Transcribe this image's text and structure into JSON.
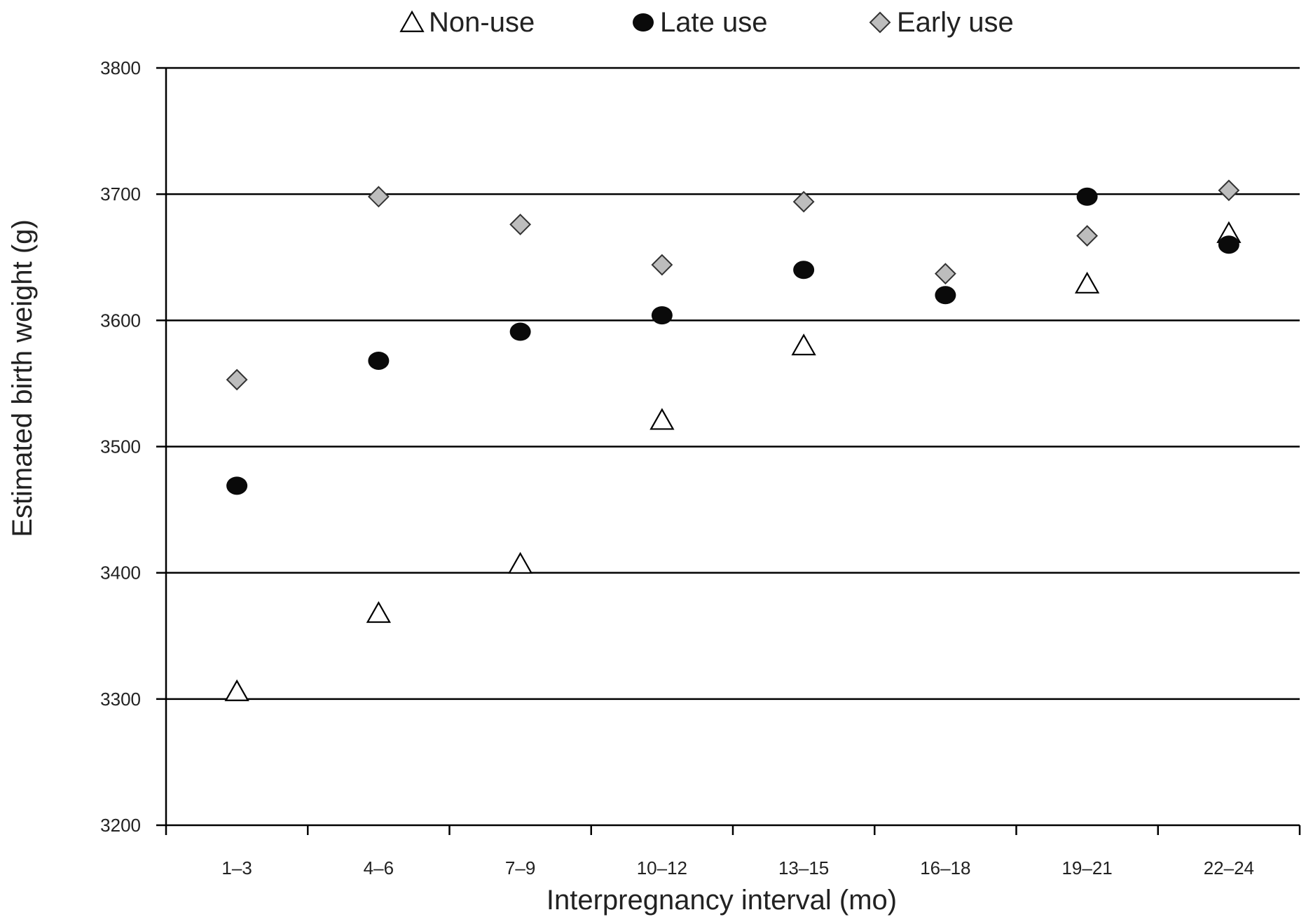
{
  "chart_data": {
    "type": "scatter",
    "title": "",
    "xlabel": "Interpregnancy interval (mo)",
    "ylabel": "Estimated birth weight (g)",
    "categories": [
      "1–3",
      "4–6",
      "7–9",
      "10–12",
      "13–15",
      "16–18",
      "19–21",
      "22–24"
    ],
    "ylim": [
      3200,
      3800
    ],
    "yticks": [
      3200,
      3300,
      3400,
      3500,
      3600,
      3700,
      3800
    ],
    "grid": "horizontal",
    "legend_position": "top",
    "series": [
      {
        "name": "Non-use",
        "marker": "triangle-open",
        "color": "#000000",
        "values": [
          3306,
          3368,
          3407,
          3521,
          3580,
          null,
          3629,
          3669
        ]
      },
      {
        "name": "Late use",
        "marker": "circle-filled",
        "color": "#000000",
        "values": [
          3469,
          3568,
          3591,
          3604,
          3640,
          3620,
          3698,
          3660
        ]
      },
      {
        "name": "Early use",
        "marker": "diamond-gray",
        "color": "#bdbdbd",
        "values": [
          3553,
          3698,
          3676,
          3644,
          3694,
          3637,
          3667,
          3703
        ]
      }
    ]
  }
}
